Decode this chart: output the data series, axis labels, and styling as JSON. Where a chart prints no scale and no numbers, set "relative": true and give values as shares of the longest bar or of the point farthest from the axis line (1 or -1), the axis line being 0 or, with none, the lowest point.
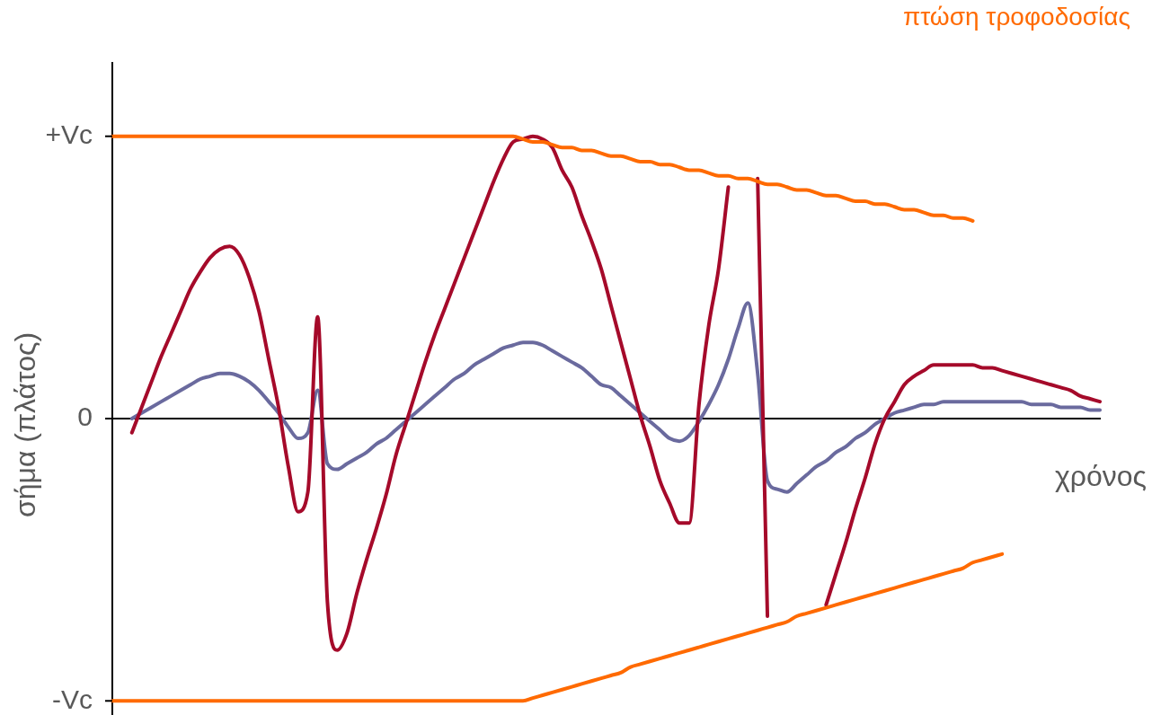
{
  "chart_data": {
    "type": "line",
    "title": "πτώση τροφοδοσίας",
    "xlabel": "χρόνος",
    "ylabel": "σήμα (πλάτος)",
    "categories": [
      null,
      null,
      null,
      null,
      null,
      null,
      null,
      null,
      null,
      null,
      null,
      null,
      null,
      null,
      null,
      null,
      null,
      null,
      null,
      null,
      null,
      null,
      null,
      null,
      null,
      null,
      null,
      null,
      null,
      null,
      null,
      null,
      null,
      null,
      null,
      null,
      null,
      null,
      null,
      null,
      null,
      null,
      null,
      null,
      null,
      null,
      null,
      null,
      null,
      null,
      null,
      null,
      null,
      null,
      null,
      null,
      null,
      null,
      null,
      null,
      null,
      null,
      null,
      null,
      null,
      null,
      null,
      null,
      null,
      null,
      null,
      null,
      null,
      null,
      null,
      null,
      null,
      null,
      null,
      null,
      null,
      null,
      null,
      null,
      null,
      null,
      null,
      null,
      null,
      null,
      null,
      null,
      null,
      null,
      null,
      null,
      null,
      null,
      null,
      null,
      null,
      null
    ],
    "relative": true,
    "ref_lines": [
      {
        "axis": "y",
        "value": 1,
        "label": "+Vc"
      },
      {
        "axis": "y",
        "value": 0,
        "label": "0"
      },
      {
        "axis": "y",
        "value": -1,
        "label": "-Vc"
      }
    ],
    "grid": false,
    "legend": false,
    "marker": "none",
    "line_style": "solid",
    "series": [
      {
        "color": "#ff6a00",
        "values": [
          1.0,
          1.0,
          1.0,
          1.0,
          1.0,
          1.0,
          1.0,
          1.0,
          1.0,
          1.0,
          1.0,
          1.0,
          1.0,
          1.0,
          1.0,
          1.0,
          1.0,
          1.0,
          1.0,
          1.0,
          1.0,
          1.0,
          1.0,
          1.0,
          1.0,
          1.0,
          1.0,
          1.0,
          1.0,
          1.0,
          1.0,
          1.0,
          1.0,
          1.0,
          1.0,
          1.0,
          1.0,
          1.0,
          1.0,
          1.0,
          1.0,
          1.0,
          0.99,
          0.98,
          0.98,
          0.97,
          0.96,
          0.96,
          0.95,
          0.95,
          0.94,
          0.93,
          0.93,
          0.92,
          0.91,
          0.91,
          0.9,
          0.9,
          0.89,
          0.88,
          0.88,
          0.87,
          0.86,
          0.86,
          0.85,
          0.85,
          0.84,
          0.83,
          0.83,
          0.82,
          0.81,
          0.81,
          0.8,
          0.79,
          0.79,
          0.78,
          0.77,
          0.77,
          0.76,
          0.76,
          0.75,
          0.74,
          0.74,
          0.73,
          0.72,
          0.72,
          0.71,
          0.71,
          0.7,
          null,
          null,
          null,
          null,
          null,
          null,
          null,
          null,
          null,
          null,
          null,
          null,
          null
        ]
      },
      {
        "color": "#ff6a00",
        "values": [
          -1.0,
          -1.0,
          -1.0,
          -1.0,
          -1.0,
          -1.0,
          -1.0,
          -1.0,
          -1.0,
          -1.0,
          -1.0,
          -1.0,
          -1.0,
          -1.0,
          -1.0,
          -1.0,
          -1.0,
          -1.0,
          -1.0,
          -1.0,
          -1.0,
          -1.0,
          -1.0,
          -1.0,
          -1.0,
          -1.0,
          -1.0,
          -1.0,
          -1.0,
          -1.0,
          -1.0,
          -1.0,
          -1.0,
          -1.0,
          -1.0,
          -1.0,
          -1.0,
          -1.0,
          -1.0,
          -1.0,
          -1.0,
          -1.0,
          -1.0,
          -0.99,
          -0.98,
          -0.97,
          -0.96,
          -0.95,
          -0.94,
          -0.93,
          -0.92,
          -0.91,
          -0.9,
          -0.88,
          -0.87,
          -0.86,
          -0.85,
          -0.84,
          -0.83,
          -0.82,
          -0.81,
          -0.8,
          -0.79,
          -0.78,
          -0.77,
          -0.76,
          -0.75,
          -0.74,
          -0.73,
          -0.72,
          -0.7,
          -0.69,
          -0.68,
          -0.67,
          -0.66,
          -0.65,
          -0.64,
          -0.63,
          -0.62,
          -0.61,
          -0.6,
          -0.59,
          -0.58,
          -0.57,
          -0.56,
          -0.55,
          -0.54,
          -0.53,
          -0.51,
          -0.5,
          -0.49,
          -0.48,
          null,
          null,
          null,
          null,
          null,
          null,
          null,
          null,
          null,
          null
        ]
      },
      {
        "color": "#a50a2a",
        "values": [
          null,
          null,
          -0.05,
          0.04,
          0.13,
          0.22,
          0.3,
          0.38,
          0.46,
          0.52,
          0.57,
          0.6,
          0.61,
          0.58,
          0.5,
          0.38,
          0.21,
          0.04,
          -0.17,
          -0.33,
          -0.26,
          0.36,
          -0.65,
          -0.82,
          -0.76,
          -0.62,
          -0.5,
          -0.39,
          -0.27,
          -0.13,
          -0.02,
          0.09,
          0.2,
          0.3,
          0.39,
          0.48,
          0.57,
          0.66,
          0.75,
          0.84,
          0.92,
          0.98,
          0.99,
          1.0,
          0.99,
          0.96,
          0.88,
          0.82,
          0.72,
          0.63,
          0.53,
          0.4,
          0.27,
          0.14,
          0.01,
          -0.1,
          -0.22,
          -0.3,
          -0.37,
          -0.37,
          0.05,
          0.33,
          0.53,
          0.82,
          null,
          null,
          0.85,
          -0.7,
          null,
          null,
          null,
          null,
          null,
          -0.66,
          -0.55,
          -0.44,
          -0.32,
          -0.21,
          -0.09,
          0.0,
          0.06,
          0.12,
          0.15,
          0.17,
          0.19,
          0.19,
          0.19,
          0.19,
          0.19,
          0.18,
          0.18,
          0.17,
          0.16,
          0.15,
          0.14,
          0.13,
          0.12,
          0.11,
          0.1,
          0.08,
          0.07,
          0.06
        ]
      },
      {
        "color": "#6a6a9e",
        "values": [
          null,
          null,
          0,
          0.02,
          0.04,
          0.06,
          0.08,
          0.1,
          0.12,
          0.14,
          0.15,
          0.16,
          0.16,
          0.15,
          0.13,
          0.1,
          0.06,
          0.02,
          -0.03,
          -0.07,
          -0.05,
          0.1,
          -0.16,
          -0.18,
          -0.16,
          -0.14,
          -0.12,
          -0.09,
          -0.07,
          -0.04,
          -0.01,
          0.02,
          0.05,
          0.08,
          0.11,
          0.14,
          0.16,
          0.19,
          0.21,
          0.23,
          0.25,
          0.26,
          0.27,
          0.27,
          0.26,
          0.24,
          0.22,
          0.2,
          0.18,
          0.15,
          0.12,
          0.11,
          0.08,
          0.05,
          0.02,
          -0.01,
          -0.04,
          -0.07,
          -0.08,
          -0.06,
          -0.01,
          0.05,
          0.12,
          0.21,
          0.32,
          0.41,
          0.16,
          -0.22,
          -0.25,
          -0.26,
          -0.23,
          -0.2,
          -0.17,
          -0.15,
          -0.12,
          -0.1,
          -0.07,
          -0.05,
          -0.02,
          0.0,
          0.02,
          0.03,
          0.04,
          0.05,
          0.05,
          0.06,
          0.06,
          0.06,
          0.06,
          0.06,
          0.06,
          0.06,
          0.06,
          0.06,
          0.05,
          0.05,
          0.05,
          0.04,
          0.04,
          0.04,
          0.03,
          0.03
        ]
      }
    ]
  }
}
